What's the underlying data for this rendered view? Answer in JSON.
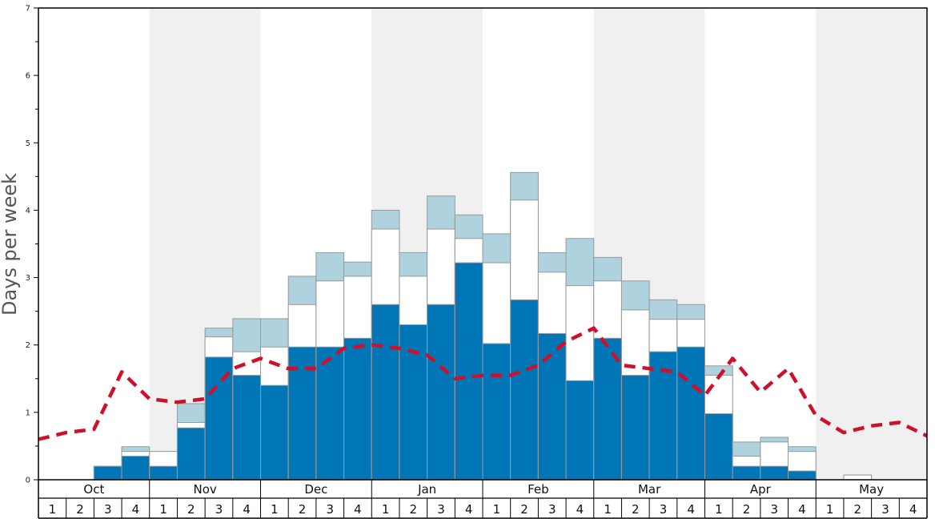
{
  "chart_data": {
    "type": "bar",
    "ylabel": "Days per week",
    "ylim": [
      0,
      7
    ],
    "yticks": [
      0,
      1,
      2,
      3,
      4,
      5,
      6,
      7
    ],
    "months": [
      "Oct",
      "Nov",
      "Dec",
      "Jan",
      "Feb",
      "Mar",
      "Apr",
      "May"
    ],
    "weeks": [
      "1",
      "2",
      "3",
      "4"
    ],
    "shaded_months": [
      "Nov",
      "Jan",
      "Mar",
      "May"
    ],
    "colors": {
      "dark": "#0076b6",
      "mid": "#ffffff",
      "light": "#aed3df",
      "line": "#d0102a",
      "shade": "#f0f0f0",
      "bar_edge": "#999999"
    },
    "series": [
      {
        "values": [
          0,
          0,
          0.2,
          0.35,
          0.2,
          0.77,
          1.82,
          1.55,
          1.4,
          1.97,
          1.97,
          2.1,
          2.6,
          2.3,
          2.6,
          3.22,
          2.02,
          2.67,
          2.17,
          1.47,
          2.1,
          1.55,
          1.9,
          1.97,
          0.98,
          0.2,
          0.2,
          0.13,
          0,
          0,
          0,
          0
        ]
      },
      {
        "values": [
          0,
          0,
          0.2,
          0.42,
          0.42,
          0.85,
          2.12,
          1.9,
          1.97,
          2.6,
          2.95,
          3.02,
          3.72,
          3.02,
          3.72,
          3.58,
          3.22,
          4.15,
          3.08,
          2.88,
          2.95,
          2.52,
          2.38,
          2.38,
          1.55,
          0.35,
          0.56,
          0.42,
          0,
          0.07,
          0,
          0
        ]
      },
      {
        "values": [
          0,
          0,
          0.2,
          0.49,
          0.42,
          1.13,
          2.25,
          2.39,
          2.39,
          3.02,
          3.37,
          3.23,
          4.0,
          3.37,
          4.21,
          3.93,
          3.65,
          4.56,
          3.37,
          3.58,
          3.3,
          2.95,
          2.67,
          2.6,
          1.69,
          0.56,
          0.63,
          0.49,
          0,
          0.07,
          0,
          0
        ]
      },
      {
        "values": [
          0.6,
          0.7,
          0.75,
          1.6,
          1.2,
          1.15,
          1.2,
          1.65,
          1.8,
          1.65,
          1.65,
          1.95,
          2.0,
          1.95,
          1.85,
          1.5,
          1.55,
          1.55,
          1.7,
          2.05,
          2.25,
          1.7,
          1.65,
          1.6,
          1.25,
          1.8,
          1.3,
          1.65,
          0.95,
          0.7,
          0.8,
          0.85,
          0.65
        ]
      }
    ]
  }
}
